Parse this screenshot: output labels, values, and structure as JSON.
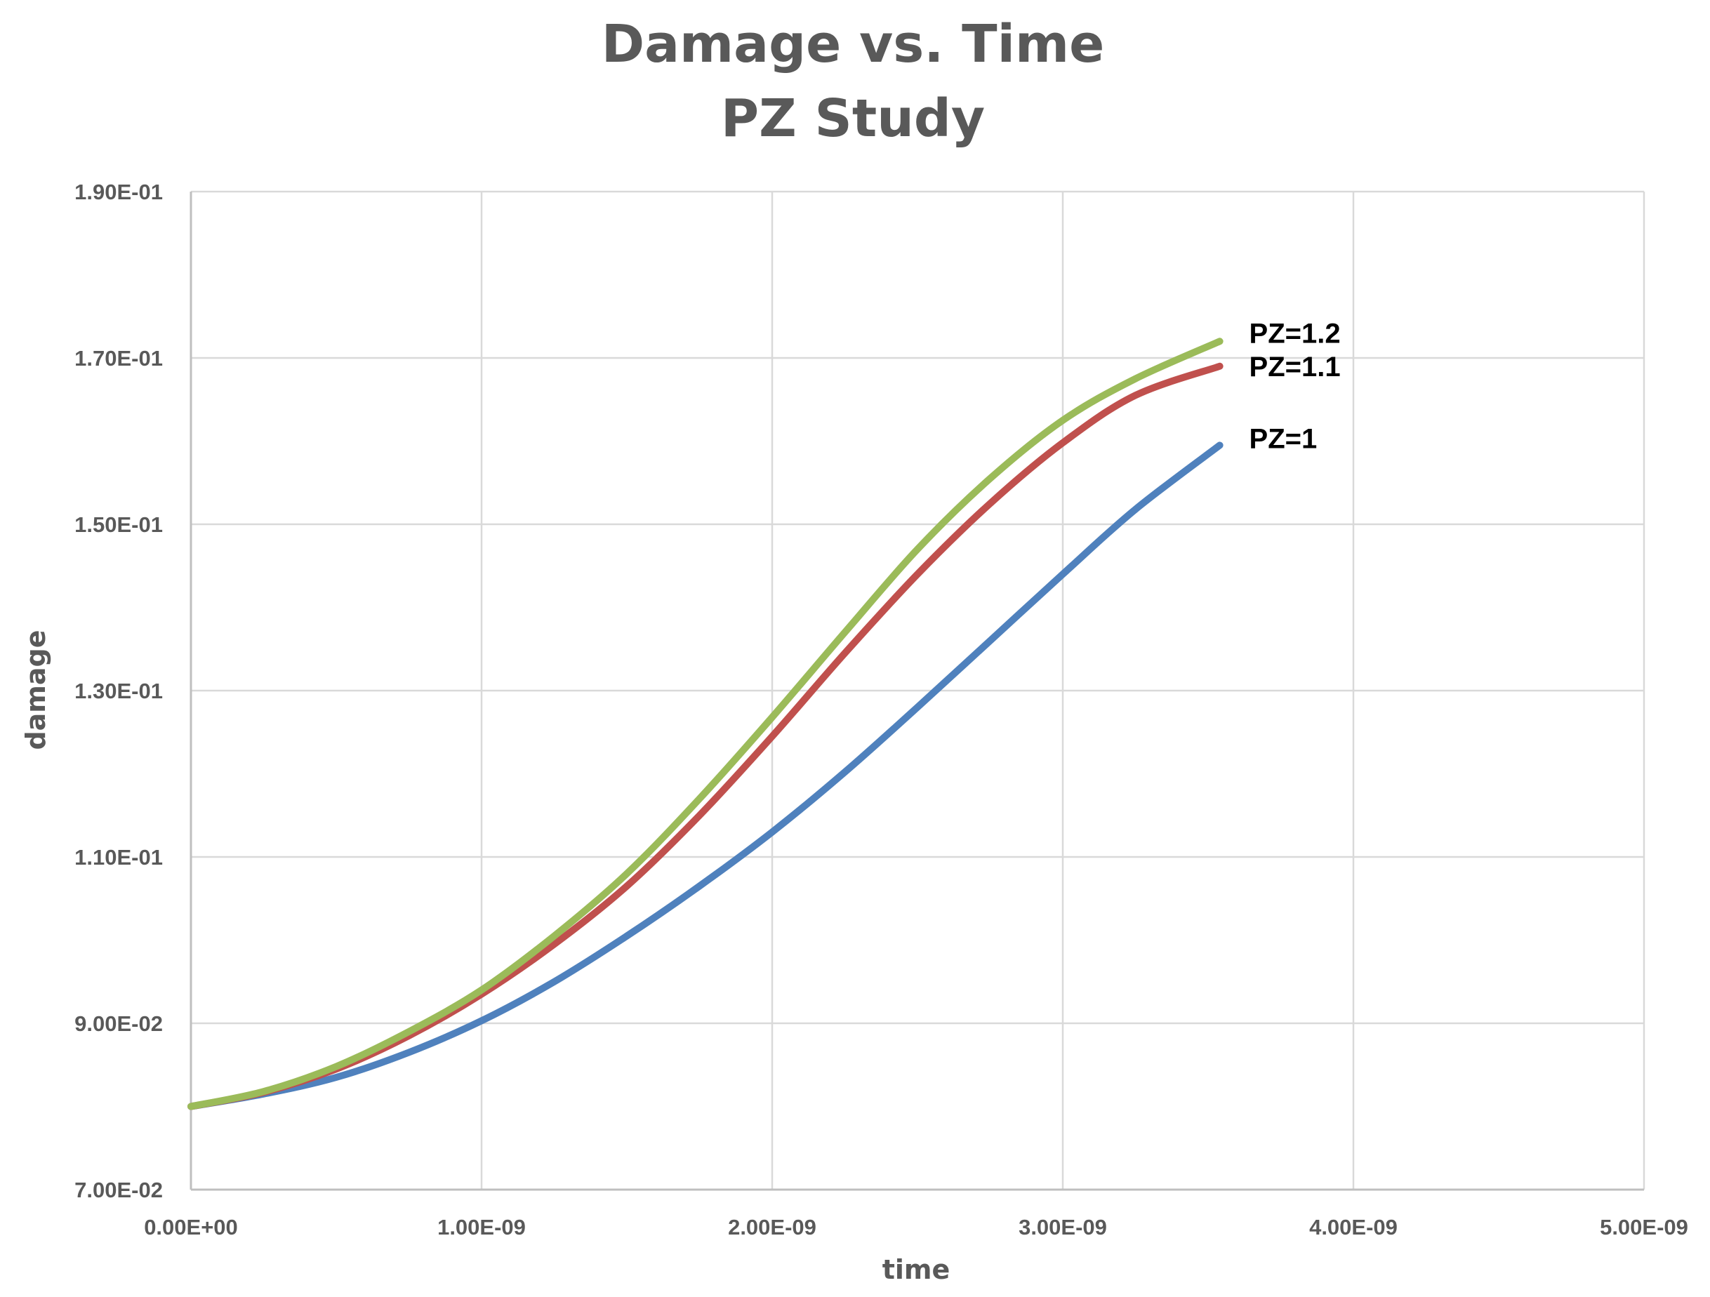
{
  "chart_data": {
    "type": "line",
    "title": "Damage vs. Time",
    "subtitle": "PZ Study",
    "xlabel": "time",
    "ylabel": "damage",
    "xlim": [
      0,
      5e-09
    ],
    "ylim": [
      0.07,
      0.19
    ],
    "x_ticks": [
      0,
      1e-09,
      2e-09,
      3e-09,
      4e-09,
      5e-09
    ],
    "x_tick_labels": [
      "0.00E+00",
      "1.00E-09",
      "2.00E-09",
      "3.00E-09",
      "4.00E-09",
      "5.00E-09"
    ],
    "y_ticks": [
      0.07,
      0.09,
      0.11,
      0.13,
      0.15,
      0.17,
      0.19
    ],
    "y_tick_labels": [
      "7.00E-02",
      "9.00E-02",
      "1.10E-01",
      "1.30E-01",
      "1.50E-01",
      "1.70E-01",
      "1.90E-01"
    ],
    "grid": true,
    "legend": "inline labels at line ends",
    "x": [
      0,
      2.5e-10,
      5e-10,
      7.5e-10,
      1e-09,
      1.25e-09,
      1.5e-09,
      1.75e-09,
      2e-09,
      2.25e-09,
      2.5e-09,
      2.75e-09,
      3e-09,
      3.25e-09,
      3.54e-09
    ],
    "series": [
      {
        "name": "PZ=1",
        "color": "#4f81bd",
        "values": [
          0.08,
          0.0815,
          0.0835,
          0.0865,
          0.0903,
          0.095,
          0.1005,
          0.1065,
          0.113,
          0.1202,
          0.128,
          0.136,
          0.144,
          0.1518,
          0.1595
        ]
      },
      {
        "name": "PZ=1.1",
        "color": "#c0504d",
        "values": [
          0.08,
          0.0817,
          0.0845,
          0.0885,
          0.0935,
          0.0995,
          0.1065,
          0.115,
          0.1245,
          0.1345,
          0.144,
          0.1525,
          0.1598,
          0.1655,
          0.169
        ]
      },
      {
        "name": "PZ=1.2",
        "color": "#9bbb59",
        "values": [
          0.08,
          0.0818,
          0.0848,
          0.089,
          0.094,
          0.1005,
          0.108,
          0.117,
          0.1268,
          0.137,
          0.147,
          0.1555,
          0.1625,
          0.1675,
          0.172
        ]
      }
    ]
  }
}
